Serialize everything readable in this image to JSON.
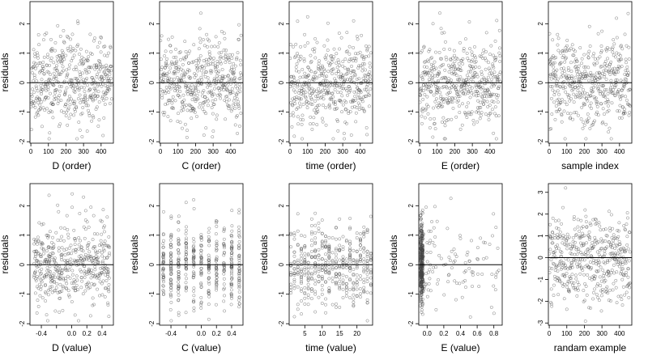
{
  "figure": {
    "rows": 2,
    "columns": 5
  },
  "chart_data": [
    {
      "type": "scatter",
      "xlabel": "D (order)",
      "ylabel": "residuals",
      "xlim": [
        -5,
        470
      ],
      "ylim": [
        -2.05,
        2.75
      ],
      "xticks": [
        0,
        100,
        200,
        300,
        400
      ],
      "yticks": [
        -2,
        -1,
        0,
        1,
        2
      ],
      "reference_line_y": 0,
      "grid": false,
      "seed": 11,
      "n": 460,
      "x_kind": "index",
      "y_sd": 0.72,
      "y_range": [
        -1.9,
        2.7
      ]
    },
    {
      "type": "scatter",
      "xlabel": "C (order)",
      "ylabel": "residuals",
      "xlim": [
        -5,
        470
      ],
      "ylim": [
        -2.05,
        2.75
      ],
      "xticks": [
        0,
        100,
        200,
        300,
        400
      ],
      "yticks": [
        -2,
        -1,
        0,
        1,
        2
      ],
      "reference_line_y": 0,
      "grid": false,
      "seed": 23,
      "n": 460,
      "x_kind": "index",
      "y_sd": 0.72,
      "y_range": [
        -1.9,
        2.7
      ]
    },
    {
      "type": "scatter",
      "xlabel": "time (order)",
      "ylabel": "residuals",
      "xlim": [
        -5,
        470
      ],
      "ylim": [
        -2.05,
        2.75
      ],
      "xticks": [
        0,
        100,
        200,
        300,
        400
      ],
      "yticks": [
        -2,
        -1,
        0,
        1,
        2
      ],
      "reference_line_y": 0,
      "grid": false,
      "seed": 37,
      "n": 460,
      "x_kind": "index",
      "y_sd": 0.72,
      "y_range": [
        -1.9,
        2.7
      ]
    },
    {
      "type": "scatter",
      "xlabel": "E (order)",
      "ylabel": "residuals",
      "xlim": [
        -5,
        470
      ],
      "ylim": [
        -2.05,
        2.75
      ],
      "xticks": [
        0,
        100,
        200,
        300,
        400
      ],
      "yticks": [
        -2,
        -1,
        0,
        1,
        2
      ],
      "reference_line_y": 0,
      "grid": false,
      "seed": 41,
      "n": 460,
      "x_kind": "index",
      "y_sd": 0.72,
      "y_range": [
        -1.9,
        2.7
      ]
    },
    {
      "type": "scatter",
      "xlabel": "sample index",
      "ylabel": "residuals",
      "xlim": [
        -5,
        470
      ],
      "ylim": [
        -2.05,
        2.75
      ],
      "xticks": [
        0,
        100,
        200,
        300,
        400
      ],
      "yticks": [
        -2,
        -1,
        0,
        1,
        2
      ],
      "reference_line_y": 0,
      "grid": false,
      "seed": 53,
      "n": 460,
      "x_kind": "index",
      "y_sd": 0.72,
      "y_range": [
        -1.9,
        2.7
      ]
    },
    {
      "type": "scatter",
      "xlabel": "D (value)",
      "ylabel": "residuals",
      "xlim": [
        -0.55,
        0.55
      ],
      "ylim": [
        -2.05,
        2.75
      ],
      "xticks": [
        -0.4,
        -0.2,
        0,
        0.2,
        0.4
      ],
      "xtick_labels": [
        "-0.4",
        "",
        "0.0",
        "0.2",
        "0.4"
      ],
      "yticks": [
        -2,
        -1,
        0,
        1,
        2
      ],
      "reference_line_y": 0,
      "grid": false,
      "seed": 67,
      "n": 460,
      "x_kind": "centered",
      "x_spread": 0.5,
      "y_sd": 0.72,
      "y_range": [
        -1.9,
        2.7
      ]
    },
    {
      "type": "scatter",
      "xlabel": "C (value)",
      "ylabel": "residuals",
      "xlim": [
        -0.55,
        0.55
      ],
      "ylim": [
        -2.05,
        2.75
      ],
      "xticks": [
        -0.4,
        -0.2,
        0,
        0.2,
        0.4
      ],
      "xtick_labels": [
        "-0.4",
        "",
        "0.0",
        "0.2",
        "0.4"
      ],
      "yticks": [
        -2,
        -1,
        0,
        1,
        2
      ],
      "reference_line_y": 0,
      "grid": false,
      "seed": 79,
      "n": 460,
      "x_kind": "discrete",
      "x_levels": [
        -0.5,
        -0.4,
        -0.3,
        -0.2,
        -0.1,
        0.0,
        0.1,
        0.2,
        0.3,
        0.4,
        0.5
      ],
      "y_sd": 0.72,
      "y_range": [
        -1.9,
        2.7
      ]
    },
    {
      "type": "scatter",
      "xlabel": "time (value)",
      "ylabel": "residuals",
      "xlim": [
        0.5,
        24.5
      ],
      "ylim": [
        -2.05,
        2.75
      ],
      "xticks": [
        5,
        10,
        15,
        20
      ],
      "yticks": [
        -2,
        -1,
        0,
        1,
        2
      ],
      "reference_line_y": 0,
      "grid": false,
      "seed": 83,
      "n": 460,
      "x_kind": "discrete",
      "x_levels": [
        1,
        2,
        3,
        4,
        5,
        6,
        7,
        8,
        9,
        10,
        11,
        12,
        13,
        14,
        15,
        16,
        17,
        18,
        19,
        20,
        21,
        22,
        23,
        24
      ],
      "y_sd": 0.72,
      "y_range": [
        -1.9,
        2.7
      ]
    },
    {
      "type": "scatter",
      "xlabel": "E (value)",
      "ylabel": "residuals",
      "xlim": [
        -0.1,
        0.9
      ],
      "ylim": [
        -2.05,
        2.75
      ],
      "xticks": [
        0,
        0.2,
        0.4,
        0.6,
        0.8
      ],
      "xtick_labels": [
        "0.0",
        "0.2",
        "0.4",
        "0.6",
        "0.8"
      ],
      "yticks": [
        -2,
        -1,
        0,
        1,
        2
      ],
      "reference_line_y": 0,
      "grid": false,
      "seed": 97,
      "n": 460,
      "x_kind": "skewed",
      "y_sd": 0.72,
      "y_range": [
        -1.9,
        2.7
      ]
    },
    {
      "type": "scatter",
      "xlabel": "randam example",
      "ylabel": "residuals",
      "xlim": [
        -5,
        470
      ],
      "ylim": [
        -3.1,
        3.4
      ],
      "xticks": [
        0,
        100,
        200,
        300,
        400
      ],
      "yticks": [
        -3,
        -2,
        -1,
        0,
        1,
        2,
        3
      ],
      "reference_line_y": 0,
      "grid": false,
      "seed": 101,
      "n": 460,
      "x_kind": "index",
      "y_sd": 1.0,
      "y_range": [
        -3.0,
        3.2
      ]
    }
  ]
}
